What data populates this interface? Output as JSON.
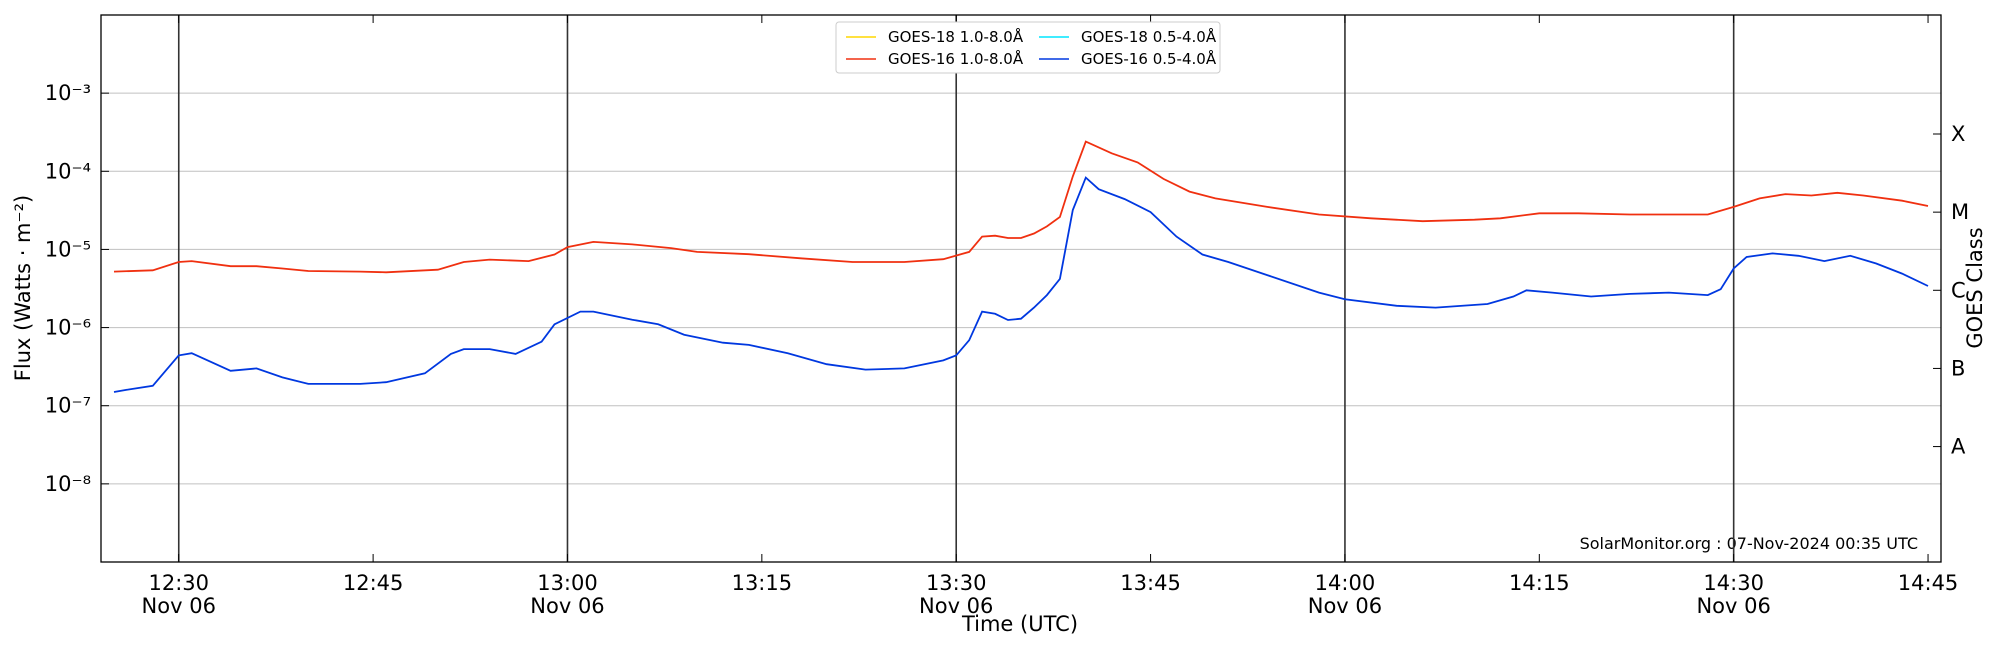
{
  "chart_data": {
    "type": "line",
    "xlabel": "Time (UTC)",
    "ylabel": "Flux (Watts · m⁻²)",
    "y2label": "GOES Class",
    "annotation": "SolarMonitor.org : 07-Nov-2024 00:35 UTC",
    "yscale": "log",
    "grid": true,
    "legend": "upper center",
    "xlim": [
      "12:24",
      "14:46"
    ],
    "ylim": [
      1e-09,
      0.01
    ],
    "y2lim": [
      1e-09,
      0.01
    ],
    "xticks": [
      {
        "value": "12:30",
        "label": "12:30",
        "date": "Nov 06"
      },
      "12:45",
      {
        "value": "13:00",
        "label": "13:00",
        "date": "Nov 06"
      },
      "13:15",
      {
        "value": "13:30",
        "label": "13:30",
        "date": "Nov 06"
      },
      "13:45",
      {
        "value": "14:00",
        "label": "14:00",
        "date": "Nov 06"
      },
      "14:15",
      {
        "value": "14:30",
        "label": "14:30",
        "date": "Nov 06"
      },
      "14:45"
    ],
    "yticks": [
      {
        "value": 1e-08,
        "label": "10⁻⁸"
      },
      {
        "value": 1e-07,
        "label": "10⁻⁷"
      },
      {
        "value": 1e-06,
        "label": "10⁻⁶"
      },
      {
        "value": 1e-05,
        "label": "10⁻⁵"
      },
      {
        "value": 0.0001,
        "label": "10⁻⁴"
      },
      {
        "value": 0.001,
        "label": "10⁻³"
      }
    ],
    "y2ticks": [
      {
        "value": 3e-08,
        "label": "A"
      },
      {
        "value": 3e-07,
        "label": "B"
      },
      {
        "value": 3e-06,
        "label": "C"
      },
      {
        "value": 3e-05,
        "label": "M"
      },
      {
        "value": 0.0003,
        "label": "X"
      }
    ],
    "series": [
      {
        "name": "GOES-18 1.0-8.0Å",
        "color": "#ffd700",
        "x": [],
        "values": []
      },
      {
        "name": "GOES-16 1.0-8.0Å",
        "color": "#f03010",
        "x": [
          "12:25",
          "12:28",
          "12:30",
          "12:31",
          "12:34",
          "12:36",
          "12:38",
          "12:40",
          "12:44",
          "12:46",
          "12:50",
          "12:52",
          "12:54",
          "12:57",
          "12:59",
          "13:00",
          "13:02",
          "13:05",
          "13:08",
          "13:10",
          "13:14",
          "13:18",
          "13:22",
          "13:26",
          "13:29",
          "13:31",
          "13:32",
          "13:33",
          "13:34",
          "13:35",
          "13:36",
          "13:37",
          "13:38",
          "13:39",
          "13:40",
          "13:42",
          "13:44",
          "13:46",
          "13:48",
          "13:50",
          "13:54",
          "13:58",
          "14:02",
          "14:06",
          "14:10",
          "14:12",
          "14:15",
          "14:18",
          "14:22",
          "14:28",
          "14:30",
          "14:32",
          "14:34",
          "14:36",
          "14:38",
          "14:40",
          "14:43",
          "14:45"
        ],
        "values": [
          5.2e-06,
          5.4e-06,
          6.9e-06,
          7.1e-06,
          6.1e-06,
          6.1e-06,
          5.7e-06,
          5.3e-06,
          5.2e-06,
          5.1e-06,
          5.5e-06,
          6.9e-06,
          7.4e-06,
          7.1e-06,
          8.6e-06,
          1.07e-05,
          1.25e-05,
          1.16e-05,
          1.04e-05,
          9.3e-06,
          8.7e-06,
          7.7e-06,
          6.9e-06,
          6.9e-06,
          7.5e-06,
          9.3e-06,
          1.46e-05,
          1.5e-05,
          1.4e-05,
          1.4e-05,
          1.6e-05,
          1.97e-05,
          2.6e-05,
          8.6e-05,
          0.00024,
          0.00017,
          0.00013,
          8e-05,
          5.5e-05,
          4.5e-05,
          3.5e-05,
          2.8e-05,
          2.5e-05,
          2.3e-05,
          2.4e-05,
          2.5e-05,
          2.9e-05,
          2.9e-05,
          2.8e-05,
          2.8e-05,
          3.5e-05,
          4.5e-05,
          5.1e-05,
          4.9e-05,
          5.3e-05,
          4.9e-05,
          4.2e-05,
          3.6e-05
        ]
      },
      {
        "name": "GOES-18 0.5-4.0Å",
        "color": "#00e5ff",
        "x": [],
        "values": []
      },
      {
        "name": "GOES-16 0.5-4.0Å",
        "color": "#0038e0",
        "x": [
          "12:25",
          "12:26",
          "12:28",
          "12:30",
          "12:31",
          "12:34",
          "12:36",
          "12:38",
          "12:40",
          "12:42",
          "12:44",
          "12:46",
          "12:49",
          "12:51",
          "12:52",
          "12:54",
          "12:56",
          "12:58",
          "12:59",
          "13:01",
          "13:02",
          "13:05",
          "13:07",
          "13:09",
          "13:12",
          "13:14",
          "13:17",
          "13:20",
          "13:23",
          "13:26",
          "13:29",
          "13:30",
          "13:31",
          "13:32",
          "13:33",
          "13:34",
          "13:35",
          "13:36",
          "13:37",
          "13:38",
          "13:39",
          "13:40",
          "13:41",
          "13:43",
          "13:45",
          "13:47",
          "13:49",
          "13:51",
          "13:54",
          "13:58",
          "14:00",
          "14:04",
          "14:07",
          "14:11",
          "14:13",
          "14:14",
          "14:16",
          "14:19",
          "14:22",
          "14:25",
          "14:28",
          "14:29",
          "14:30",
          "14:31",
          "14:33",
          "14:35",
          "14:37",
          "14:39",
          "14:41",
          "14:43",
          "14:45"
        ],
        "values": [
          1.5e-07,
          1.6e-07,
          1.8e-07,
          4.4e-07,
          4.7e-07,
          2.8e-07,
          3e-07,
          2.3e-07,
          1.9e-07,
          1.9e-07,
          1.9e-07,
          2e-07,
          2.6e-07,
          4.6e-07,
          5.3e-07,
          5.3e-07,
          4.6e-07,
          6.6e-07,
          1.1e-06,
          1.6e-06,
          1.6e-06,
          1.26e-06,
          1.1e-06,
          8.1e-07,
          6.4e-07,
          6e-07,
          4.7e-07,
          3.4e-07,
          2.9e-07,
          3e-07,
          3.8e-07,
          4.4e-07,
          6.9e-07,
          1.6e-06,
          1.5e-06,
          1.25e-06,
          1.3e-06,
          1.8e-06,
          2.6e-06,
          4.2e-06,
          3.2e-05,
          8.3e-05,
          5.9e-05,
          4.4e-05,
          3e-05,
          1.46e-05,
          8.6e-06,
          6.9e-06,
          4.7e-06,
          2.8e-06,
          2.3e-06,
          1.9e-06,
          1.8e-06,
          2e-06,
          2.5e-06,
          3e-06,
          2.8e-06,
          2.5e-06,
          2.7e-06,
          2.8e-06,
          2.6e-06,
          3.1e-06,
          5.7e-06,
          8e-06,
          8.9e-06,
          8.3e-06,
          7.1e-06,
          8.3e-06,
          6.6e-06,
          4.9e-06,
          3.4e-06
        ]
      }
    ]
  }
}
